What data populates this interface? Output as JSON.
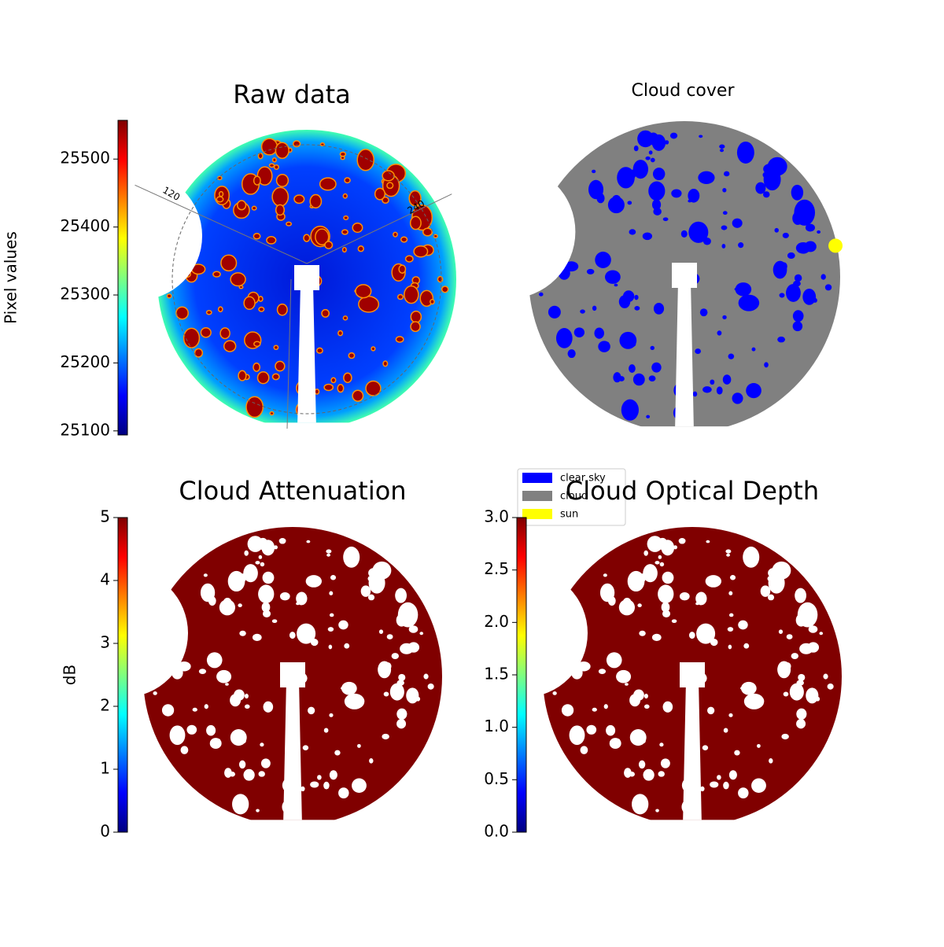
{
  "chart_data": [
    {
      "type": "image",
      "title": "Raw data",
      "colorbar_label": "Pixel values",
      "colormap": "jet",
      "clim": [
        25094,
        25557
      ],
      "cticks": [
        25100,
        25200,
        25300,
        25400,
        25500
      ],
      "polar_labels": [
        "120",
        "240"
      ]
    },
    {
      "type": "image",
      "title": "Cloud cover",
      "series": [
        {
          "name": "clear sky",
          "color": "#0000ff"
        },
        {
          "name": "cloud",
          "color": "#808080"
        },
        {
          "name": "sun",
          "color": "#ffff00"
        }
      ]
    },
    {
      "type": "image",
      "title": "Cloud Attenuation",
      "colorbar_label": "dB",
      "colormap": "jet",
      "clim": [
        0,
        5
      ],
      "cticks": [
        0,
        1,
        2,
        3,
        4,
        5
      ]
    },
    {
      "type": "image",
      "title": "Cloud Optical Depth",
      "colormap": "jet",
      "clim": [
        0,
        3
      ],
      "cticks": [
        {
          "value": 0,
          "label": "0.0"
        },
        {
          "value": 0.5,
          "label": "0.5"
        },
        {
          "value": 1,
          "label": "1.0"
        },
        {
          "value": 1.5,
          "label": "1.5"
        },
        {
          "value": 2,
          "label": "2.0"
        },
        {
          "value": 2.5,
          "label": "2.5"
        },
        {
          "value": 3,
          "label": "3.0"
        }
      ]
    }
  ]
}
